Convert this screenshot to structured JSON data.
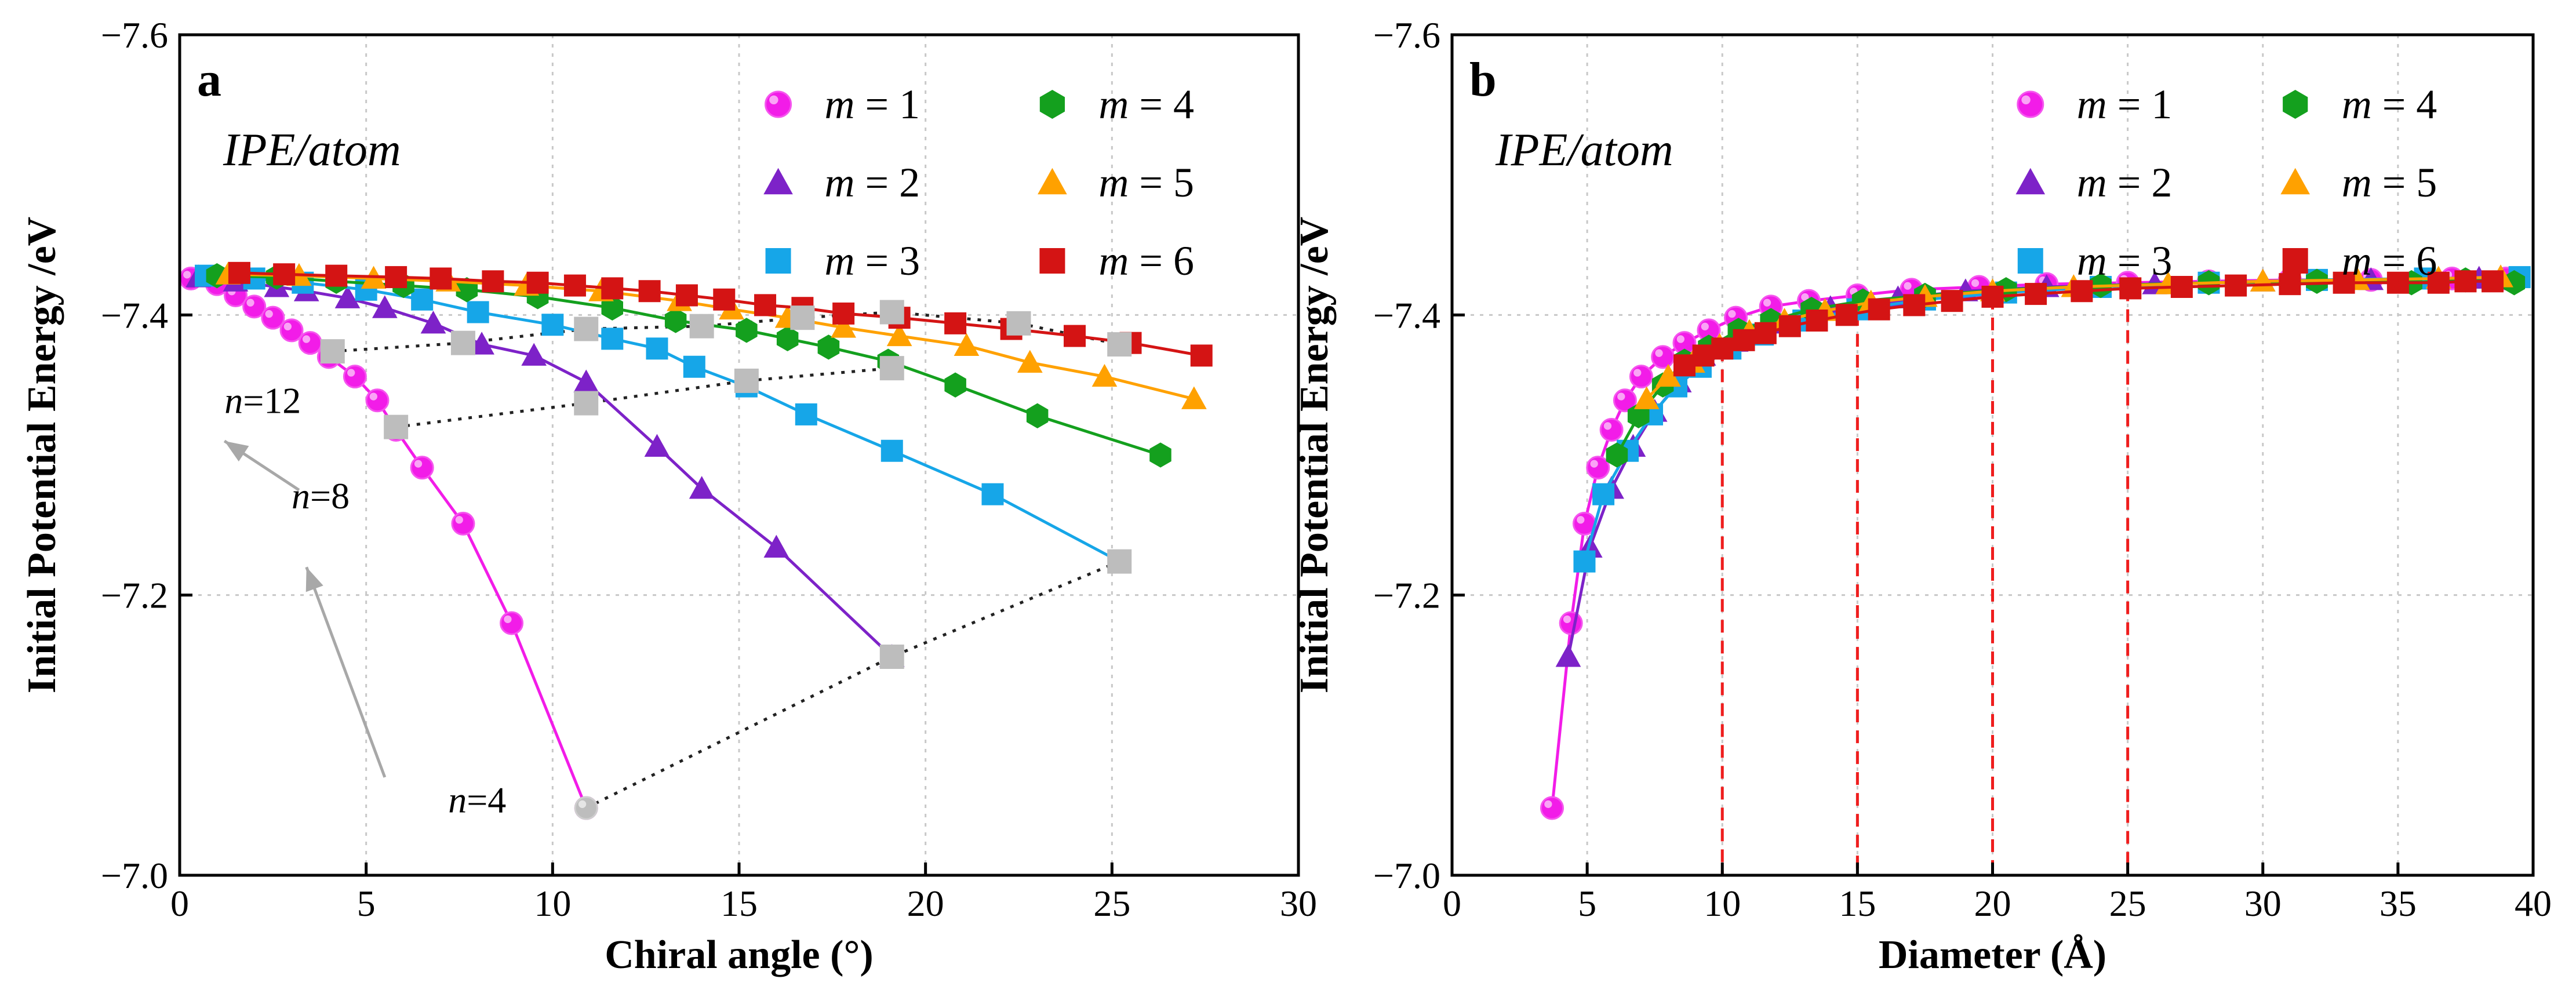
{
  "colors": {
    "m1": "#f21ce8",
    "m2": "#7d22c8",
    "m3": "#16a6e8",
    "m4": "#14a01e",
    "m5": "#ffa100",
    "m6": "#d41414",
    "gray": "#bdbdbd",
    "red_dash": "#ef1d1d"
  },
  "chart_data": [
    {
      "type": "line",
      "panel_label": "a",
      "annotation": "IPE/atom",
      "xlabel": "Chiral angle (°)",
      "ylabel": "Initial Potential Energy /eV",
      "xlim": [
        0,
        30
      ],
      "ylim": [
        -7.6,
        -7.0
      ],
      "y_reversed": true,
      "xticks": [
        {
          "v": 0,
          "label": "0"
        },
        {
          "v": 5,
          "label": "5"
        },
        {
          "v": 10,
          "label": "10"
        },
        {
          "v": 15,
          "label": "15"
        },
        {
          "v": 20,
          "label": "20"
        },
        {
          "v": 25,
          "label": "25"
        },
        {
          "v": 30,
          "label": "30"
        }
      ],
      "yticks": [
        {
          "v": -7.6,
          "label": "−7.6"
        },
        {
          "v": -7.4,
          "label": "−7.4"
        },
        {
          "v": -7.2,
          "label": "−7.2"
        },
        {
          "v": -7.0,
          "label": "−7.0"
        }
      ],
      "grid": true,
      "legend": {
        "position": "top-right",
        "entries": [
          {
            "name": "m",
            "eq": " = 1",
            "series": 0
          },
          {
            "name": "m",
            "eq": " = 4",
            "series": 3
          },
          {
            "name": "m",
            "eq": " = 2",
            "series": 1
          },
          {
            "name": "m",
            "eq": " = 5",
            "series": 4
          },
          {
            "name": "m",
            "eq": " = 3",
            "series": 2
          },
          {
            "name": "m",
            "eq": " = 6",
            "series": 5
          }
        ]
      },
      "series": [
        {
          "name": "m = 1",
          "marker": "circle",
          "color_key": "m1",
          "x": [
            0.3,
            1.0,
            1.5,
            2.0,
            2.5,
            3.0,
            3.5,
            4.0,
            4.7,
            5.3,
            5.8,
            6.5,
            7.6,
            8.9,
            10.9
          ],
          "y": [
            -7.426,
            -7.422,
            -7.414,
            -7.406,
            -7.398,
            -7.389,
            -7.38,
            -7.37,
            -7.356,
            -7.339,
            -7.318,
            -7.291,
            -7.251,
            -7.18,
            -7.048
          ]
        },
        {
          "name": "m = 2",
          "marker": "triangle",
          "color_key": "m2",
          "x": [
            0.5,
            1.5,
            2.6,
            3.4,
            4.5,
            5.5,
            6.8,
            8.1,
            9.5,
            10.9,
            12.8,
            14.0,
            16.0,
            19.1
          ],
          "y": [
            -7.427,
            -7.424,
            -7.42,
            -7.417,
            -7.412,
            -7.405,
            -7.394,
            -7.379,
            -7.371,
            -7.352,
            -7.306,
            -7.276,
            -7.234,
            -7.156
          ]
        },
        {
          "name": "m = 3",
          "marker": "square",
          "color_key": "m3",
          "x": [
            0.7,
            2.0,
            3.3,
            5.0,
            6.5,
            8.0,
            10.0,
            11.6,
            12.8,
            13.8,
            15.2,
            16.8,
            19.1,
            21.8,
            25.2
          ],
          "y": [
            -7.428,
            -7.426,
            -7.423,
            -7.418,
            -7.411,
            -7.402,
            -7.393,
            -7.383,
            -7.376,
            -7.363,
            -7.349,
            -7.329,
            -7.303,
            -7.272,
            -7.224
          ]
        },
        {
          "name": "m = 4",
          "marker": "hexagon",
          "color_key": "m4",
          "x": [
            1.0,
            2.6,
            4.2,
            6.0,
            7.7,
            9.6,
            11.6,
            13.3,
            15.2,
            16.3,
            17.4,
            19.0,
            20.8,
            23.0,
            26.3
          ],
          "y": [
            -7.428,
            -7.427,
            -7.424,
            -7.421,
            -7.418,
            -7.413,
            -7.405,
            -7.396,
            -7.389,
            -7.383,
            -7.377,
            -7.367,
            -7.35,
            -7.328,
            -7.3
          ]
        },
        {
          "name": "m = 5",
          "marker": "triangle",
          "color_key": "m5",
          "x": [
            1.3,
            3.2,
            5.2,
            7.2,
            9.3,
            11.3,
            13.4,
            14.8,
            16.3,
            17.8,
            19.3,
            21.1,
            22.8,
            24.8,
            27.2
          ],
          "y": [
            -7.429,
            -7.428,
            -7.426,
            -7.424,
            -7.421,
            -7.417,
            -7.41,
            -7.404,
            -7.398,
            -7.391,
            -7.385,
            -7.378,
            -7.366,
            -7.356,
            -7.34
          ]
        },
        {
          "name": "m = 6",
          "marker": "square",
          "color_key": "m6",
          "x": [
            1.6,
            2.8,
            4.2,
            5.8,
            7.0,
            8.4,
            9.6,
            10.6,
            11.6,
            12.6,
            13.6,
            14.6,
            15.7,
            16.7,
            17.8,
            19.3,
            20.8,
            22.3,
            24.0,
            25.5,
            27.4
          ],
          "y": [
            -7.43,
            -7.429,
            -7.428,
            -7.427,
            -7.426,
            -7.424,
            -7.423,
            -7.421,
            -7.419,
            -7.417,
            -7.414,
            -7.411,
            -7.407,
            -7.405,
            -7.401,
            -7.398,
            -7.394,
            -7.39,
            -7.385,
            -7.38,
            -7.371
          ]
        }
      ],
      "n_labels": [
        {
          "text": "n",
          "sub": "=12",
          "at": [
            1.2,
            -7.33
          ]
        },
        {
          "text": "n",
          "sub": "=8",
          "at": [
            3.0,
            -7.262
          ]
        },
        {
          "text": "n",
          "sub": "=4",
          "at": [
            7.2,
            -7.045
          ]
        }
      ],
      "n_points": [
        {
          "x": [
            4.1,
            7.6,
            10.9,
            14.0,
            16.7,
            19.1,
            22.5,
            25.2
          ],
          "y": [
            -7.374,
            -7.38,
            -7.39,
            -7.392,
            -7.398,
            -7.402,
            -7.394,
            -7.379
          ]
        },
        {
          "x": [
            5.8,
            10.9,
            15.2,
            19.1
          ],
          "y": [
            -7.32,
            -7.337,
            -7.353,
            -7.362
          ]
        },
        {
          "x": [
            10.9,
            19.1,
            25.2
          ],
          "y": [
            -7.048,
            -7.156,
            -7.224
          ]
        }
      ],
      "arrows": [
        {
          "from": [
            5.5,
            -7.07
          ],
          "to": [
            3.4,
            -7.22
          ]
        },
        {
          "from": [
            3.2,
            -7.275
          ],
          "to": [
            1.2,
            -7.31
          ]
        }
      ]
    },
    {
      "type": "line",
      "panel_label": "b",
      "annotation": "IPE/atom",
      "xlabel": "Diameter (Å)",
      "ylabel": "Initial Potential Energy /eV",
      "xlim": [
        0,
        40
      ],
      "ylim": [
        -7.6,
        -7.0
      ],
      "y_reversed": true,
      "xticks": [
        {
          "v": 0,
          "label": "0",
          "red": false
        },
        {
          "v": 5,
          "label": "5",
          "red": false
        },
        {
          "v": 10,
          "label": "10",
          "red": true
        },
        {
          "v": 15,
          "label": "15",
          "red": true
        },
        {
          "v": 20,
          "label": "20",
          "red": true
        },
        {
          "v": 25,
          "label": "25",
          "red": true
        },
        {
          "v": 30,
          "label": "30",
          "red": false
        },
        {
          "v": 35,
          "label": "35",
          "red": false
        },
        {
          "v": 40,
          "label": "40",
          "red": false
        }
      ],
      "yticks": [
        {
          "v": -7.6,
          "label": "−7.6"
        },
        {
          "v": -7.4,
          "label": "−7.4"
        },
        {
          "v": -7.2,
          "label": "−7.2"
        },
        {
          "v": -7.0,
          "label": "−7.0"
        }
      ],
      "grid": true,
      "red_dashed_x": [
        10,
        15,
        20,
        25
      ],
      "legend": {
        "position": "top-right",
        "entries": [
          {
            "name": "m",
            "eq": " = 1",
            "series": 0
          },
          {
            "name": "m",
            "eq": " = 4",
            "series": 3
          },
          {
            "name": "m",
            "eq": " = 2",
            "series": 1
          },
          {
            "name": "m",
            "eq": " = 5",
            "series": 4
          },
          {
            "name": "m",
            "eq": " = 3",
            "series": 2
          },
          {
            "name": "m",
            "eq": " = 6",
            "series": 5
          }
        ]
      },
      "series": [
        {
          "name": "m = 1",
          "marker": "circle",
          "color_key": "m1",
          "x": [
            3.7,
            4.4,
            4.9,
            5.4,
            5.9,
            6.4,
            7.0,
            7.8,
            8.6,
            9.5,
            10.5,
            11.8,
            13.2,
            15.0,
            17.0,
            19.5,
            22.0,
            25.0,
            28.0,
            31.0,
            34.0,
            37.0,
            39.0
          ],
          "y": [
            -7.048,
            -7.18,
            -7.251,
            -7.291,
            -7.318,
            -7.339,
            -7.356,
            -7.37,
            -7.38,
            -7.389,
            -7.398,
            -7.406,
            -7.41,
            -7.414,
            -7.418,
            -7.42,
            -7.422,
            -7.423,
            -7.424,
            -7.425,
            -7.425,
            -7.426,
            -7.426
          ]
        },
        {
          "name": "m = 2",
          "marker": "triangle",
          "color_key": "m2",
          "x": [
            4.3,
            5.1,
            5.9,
            6.7,
            7.5,
            8.4,
            9.3,
            10.5,
            12.0,
            14.0,
            16.5,
            19.0,
            22.0,
            26.0,
            30.0,
            34.0,
            38.0
          ],
          "y": [
            -7.156,
            -7.234,
            -7.276,
            -7.306,
            -7.331,
            -7.352,
            -7.371,
            -7.381,
            -7.394,
            -7.405,
            -7.412,
            -7.417,
            -7.42,
            -7.422,
            -7.424,
            -7.425,
            -7.426
          ]
        },
        {
          "name": "m = 3",
          "marker": "square",
          "color_key": "m3",
          "x": [
            4.9,
            5.6,
            6.5,
            7.4,
            8.3,
            9.2,
            10.3,
            11.5,
            13.0,
            15.0,
            17.5,
            20.5,
            24.0,
            28.0,
            32.0,
            36.0,
            39.5
          ],
          "y": [
            -7.224,
            -7.272,
            -7.303,
            -7.329,
            -7.349,
            -7.363,
            -7.376,
            -7.386,
            -7.396,
            -7.404,
            -7.411,
            -7.416,
            -7.42,
            -7.423,
            -7.425,
            -7.426,
            -7.427
          ]
        },
        {
          "name": "m = 4",
          "marker": "hexagon",
          "color_key": "m4",
          "x": [
            6.1,
            6.9,
            7.8,
            8.6,
            9.5,
            10.6,
            11.8,
            13.3,
            15.2,
            17.5,
            20.5,
            24.0,
            28.0,
            32.0,
            35.5,
            37.5,
            39.3
          ],
          "y": [
            -7.3,
            -7.328,
            -7.35,
            -7.367,
            -7.377,
            -7.389,
            -7.396,
            -7.404,
            -7.41,
            -7.414,
            -7.418,
            -7.421,
            -7.423,
            -7.424,
            -7.423,
            -7.425,
            -7.423
          ]
        },
        {
          "name": "m = 5",
          "marker": "triangle",
          "color_key": "m5",
          "x": [
            7.2,
            8.0,
            8.9,
            9.9,
            11.0,
            12.3,
            13.8,
            15.5,
            17.5,
            20.0,
            23.0,
            26.5,
            30.0,
            33.5,
            36.5,
            38.8
          ],
          "y": [
            -7.34,
            -7.356,
            -7.366,
            -7.378,
            -7.388,
            -7.396,
            -7.403,
            -7.409,
            -7.413,
            -7.417,
            -7.42,
            -7.422,
            -7.424,
            -7.425,
            -7.426,
            -7.427
          ]
        },
        {
          "name": "m = 6",
          "marker": "square",
          "color_key": "m6",
          "x": [
            8.6,
            9.3,
            10.0,
            10.8,
            11.6,
            12.5,
            13.5,
            14.6,
            15.8,
            17.1,
            18.5,
            20.0,
            21.6,
            23.3,
            25.1,
            27.0,
            29.0,
            31.0,
            33.0,
            35.0,
            36.5,
            37.5,
            38.5
          ],
          "y": [
            -7.364,
            -7.371,
            -7.376,
            -7.382,
            -7.387,
            -7.392,
            -7.396,
            -7.4,
            -7.404,
            -7.407,
            -7.41,
            -7.413,
            -7.415,
            -7.417,
            -7.419,
            -7.42,
            -7.421,
            -7.422,
            -7.423,
            -7.423,
            -7.423,
            -7.424,
            -7.424
          ]
        }
      ]
    }
  ]
}
